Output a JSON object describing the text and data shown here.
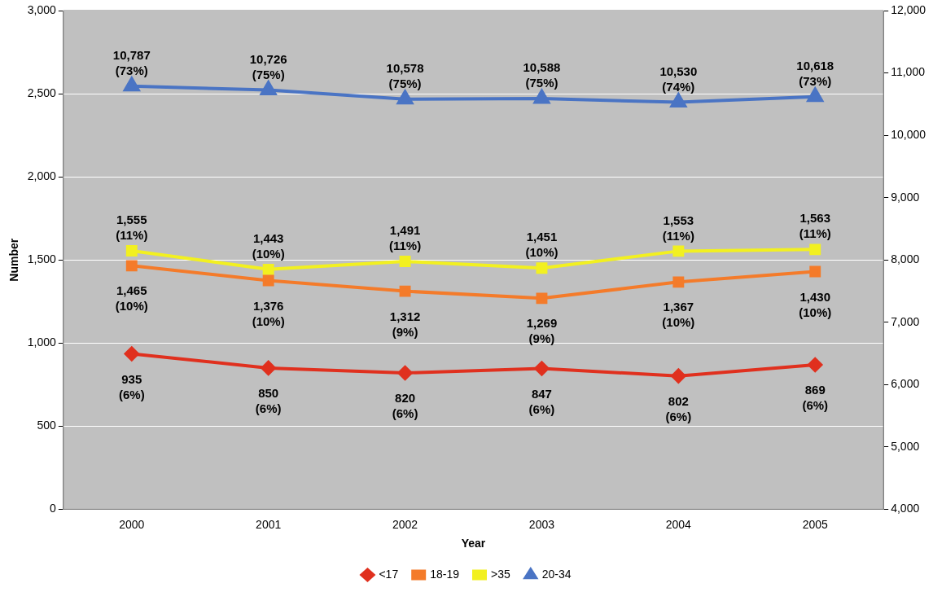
{
  "chart_data": {
    "type": "line",
    "xlabel": "Year",
    "ylabel": "Number",
    "categories": [
      "2000",
      "2001",
      "2002",
      "2003",
      "2004",
      "2005"
    ],
    "ylim": [
      0,
      3000
    ],
    "yticks": [
      {
        "value": 0,
        "label": "0"
      },
      {
        "value": 500,
        "label": "500"
      },
      {
        "value": 1000,
        "label": "1,000"
      },
      {
        "value": 1500,
        "label": "1,500"
      },
      {
        "value": 2000,
        "label": "2,000"
      },
      {
        "value": 2500,
        "label": "2,500"
      },
      {
        "value": 3000,
        "label": "3,000"
      }
    ],
    "y2lim": [
      4000,
      12000
    ],
    "y2ticks": [
      {
        "value": 4000,
        "label": "4,000"
      },
      {
        "value": 5000,
        "label": "5,000"
      },
      {
        "value": 6000,
        "label": "6,000"
      },
      {
        "value": 7000,
        "label": "7,000"
      },
      {
        "value": 8000,
        "label": "8,000"
      },
      {
        "value": 9000,
        "label": "9,000"
      },
      {
        "value": 10000,
        "label": "10,000"
      },
      {
        "value": 11000,
        "label": "11,000"
      },
      {
        "value": 12000,
        "label": "12,000"
      }
    ],
    "grid": "y",
    "legend": "bottom",
    "line_style": "solid",
    "series": [
      {
        "name": "<17",
        "color": "#e0301e",
        "marker": "diamond",
        "values": [
          935,
          850,
          820,
          847,
          802,
          869
        ],
        "value_labels": [
          "935\n(6%)",
          "850\n(6%)",
          "820\n(6%)",
          "847\n(6%)",
          "802\n(6%)",
          "869\n(6%)"
        ]
      },
      {
        "name": "18-19",
        "color": "#f47b2a",
        "marker": "square",
        "values": [
          1465,
          1376,
          1312,
          1269,
          1367,
          1430
        ],
        "value_labels": [
          "1,465\n(10%)",
          "1,376\n(10%)",
          "1,312\n(9%)",
          "1,269\n(9%)",
          "1,367\n(10%)",
          "1,430\n(10%)"
        ]
      },
      {
        "name": ">35",
        "color": "#f2f020",
        "marker": "square",
        "values": [
          1555,
          1443,
          1491,
          1451,
          1553,
          1563
        ],
        "value_labels": [
          "1,555\n(11%)",
          "1,443\n(10%)",
          "1,491\n(11%)",
          "1,451\n(10%)",
          "1,553\n(11%)",
          "1,563\n(11%)"
        ]
      },
      {
        "name": "20-34",
        "color": "#4a74c4",
        "marker": "triangle",
        "axis": "y2",
        "values": [
          10787,
          10726,
          10578,
          10588,
          10530,
          10618
        ],
        "value_labels": [
          "10,787\n(73%)",
          "10,726\n(75%)",
          "10,578\n(75%)",
          "10,588\n(75%)",
          "10,530\n(74%)",
          "10,618\n(73%)"
        ]
      }
    ]
  }
}
